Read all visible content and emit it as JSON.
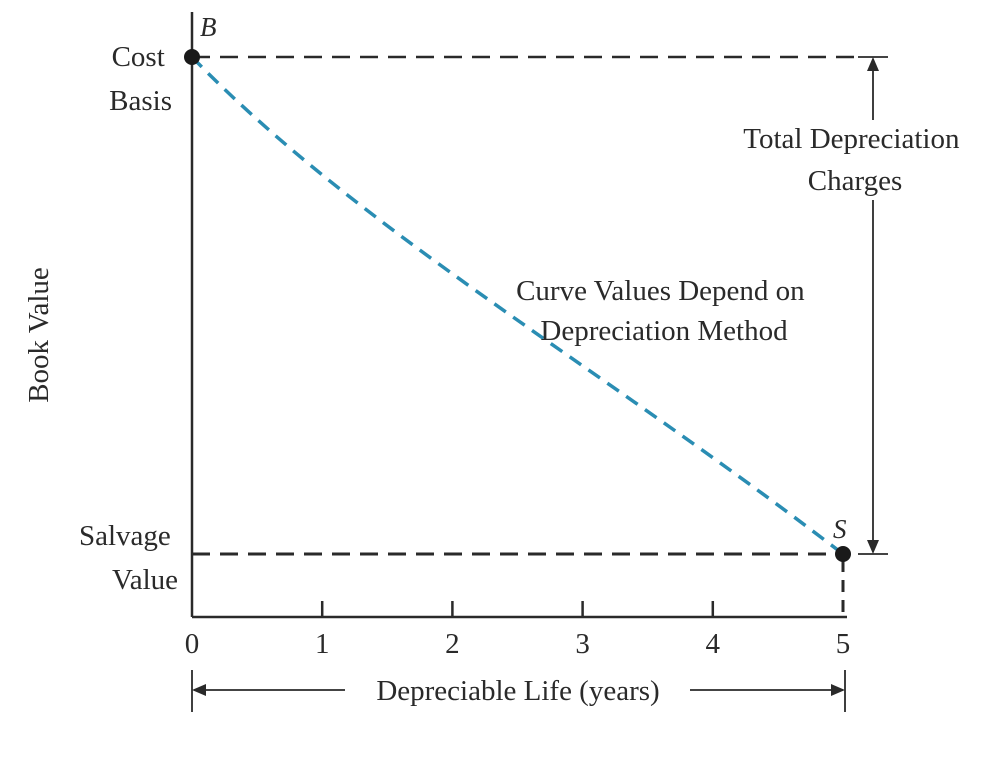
{
  "chart_data": {
    "type": "line",
    "x": [
      0,
      1,
      2,
      3,
      4,
      5
    ],
    "x_ticks": [
      "0",
      "1",
      "2",
      "3",
      "4",
      "5"
    ],
    "xlim": [
      0,
      5
    ],
    "ylabel": "Book Value",
    "xlabel": "Depreciable Life (years)",
    "grid": false,
    "y_markers": {
      "cost_basis": "Cost Basis",
      "salvage_value": "Salvage Value"
    },
    "points": [
      {
        "label": "B",
        "x": 0,
        "y": "Cost Basis"
      },
      {
        "label": "S",
        "x": 5,
        "y": "Salvage Value"
      }
    ],
    "curve": {
      "style": "dashed",
      "color": "#2a8db3",
      "shape": "decreasing convex"
    },
    "annotations": {
      "curve_note_line1": "Curve Values Depend on",
      "curve_note_line2": "Depreciation Method",
      "total_line1": "Total Depreciation",
      "total_line2": "Charges"
    },
    "colors": {
      "ink": "#2a2a2a",
      "curve": "#2a8db3"
    }
  }
}
